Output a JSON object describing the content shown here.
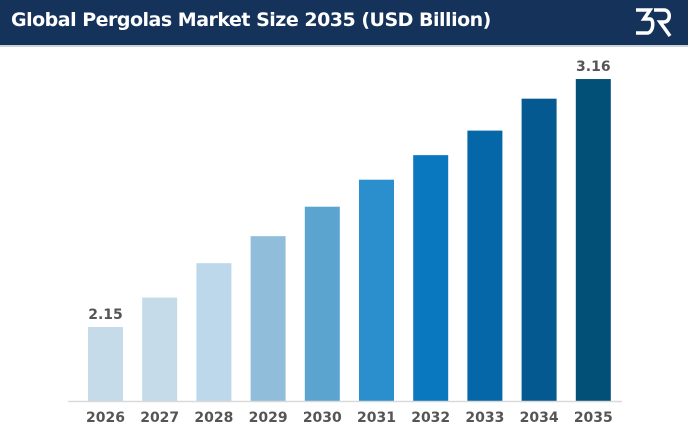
{
  "header": {
    "title": "Global Pergolas Market Size 2035 (USD Billion)",
    "logo_text": "BR"
  },
  "chart_data": {
    "type": "bar",
    "title": "Global Pergolas Market Size 2035 (USD Billion)",
    "categories": [
      "2026",
      "2027",
      "2028",
      "2029",
      "2030",
      "2031",
      "2032",
      "2033",
      "2034",
      "2035"
    ],
    "values": [
      2.15,
      2.27,
      2.41,
      2.52,
      2.64,
      2.75,
      2.85,
      2.95,
      3.08,
      3.16
    ],
    "data_labels": {
      "0": "2.15",
      "9": "3.16"
    },
    "colors": [
      "#c5dbea",
      "#c5dbea",
      "#bcd8ea",
      "#8fbdda",
      "#5ba4d0",
      "#2a8fcc",
      "#0a78be",
      "#0567a8",
      "#045a90",
      "#024f78"
    ],
    "xlabel": "",
    "ylabel": "",
    "grid": false,
    "axis_color": "#d9d9d9",
    "label_color": "#555555"
  }
}
